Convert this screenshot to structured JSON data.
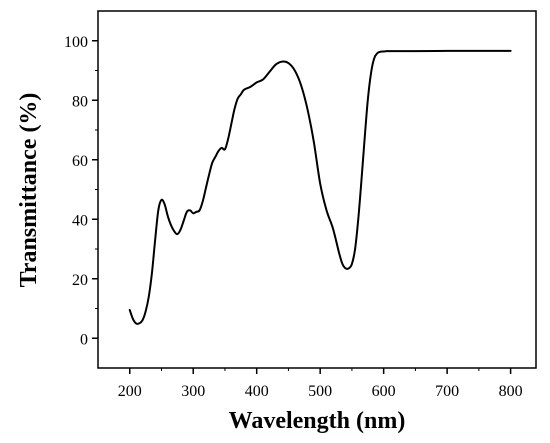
{
  "chart_data": {
    "type": "line",
    "xlabel": "Wavelength (nm)",
    "ylabel": "Transmittance (%)",
    "xlim": [
      150,
      840
    ],
    "ylim": [
      -10,
      110
    ],
    "xticks": [
      200,
      300,
      400,
      500,
      600,
      700,
      800
    ],
    "yticks": [
      0,
      20,
      40,
      60,
      80,
      100
    ],
    "grid": false,
    "legend": "none",
    "line_color": "#000000",
    "series": [
      {
        "x": [
          200,
          205,
          210,
          215,
          220,
          225,
          230,
          235,
          240,
          245,
          250,
          255,
          260,
          265,
          270,
          275,
          280,
          285,
          290,
          295,
          300,
          305,
          310,
          315,
          320,
          325,
          330,
          335,
          340,
          345,
          350,
          355,
          360,
          365,
          370,
          375,
          380,
          390,
          400,
          410,
          420,
          430,
          440,
          450,
          460,
          470,
          480,
          490,
          500,
          510,
          520,
          530,
          535,
          540,
          545,
          550,
          555,
          560,
          565,
          570,
          575,
          580,
          585,
          590,
          595,
          600,
          605,
          610,
          620,
          650,
          700,
          750,
          800
        ],
        "y": [
          9.5,
          6.5,
          5.0,
          5.0,
          6.0,
          9.0,
          14.0,
          22.0,
          33.0,
          43.0,
          46.5,
          45.0,
          41.0,
          38.0,
          36.0,
          35.0,
          36.5,
          39.5,
          42.5,
          43.0,
          42.0,
          42.5,
          43.0,
          46.0,
          50.5,
          55.0,
          59.0,
          61.0,
          63.0,
          64.0,
          63.5,
          67.0,
          72.0,
          77.0,
          80.5,
          82.0,
          83.5,
          84.5,
          86.0,
          87.0,
          89.5,
          92.0,
          93.0,
          92.5,
          90.0,
          85.0,
          77.0,
          66.0,
          52.0,
          43.0,
          37.0,
          28.5,
          25.0,
          23.5,
          23.5,
          25.0,
          30.0,
          40.0,
          53.0,
          67.0,
          80.0,
          89.0,
          94.0,
          95.8,
          96.3,
          96.4,
          96.5,
          96.5,
          96.5,
          96.5,
          96.6,
          96.6,
          96.6
        ]
      }
    ]
  }
}
